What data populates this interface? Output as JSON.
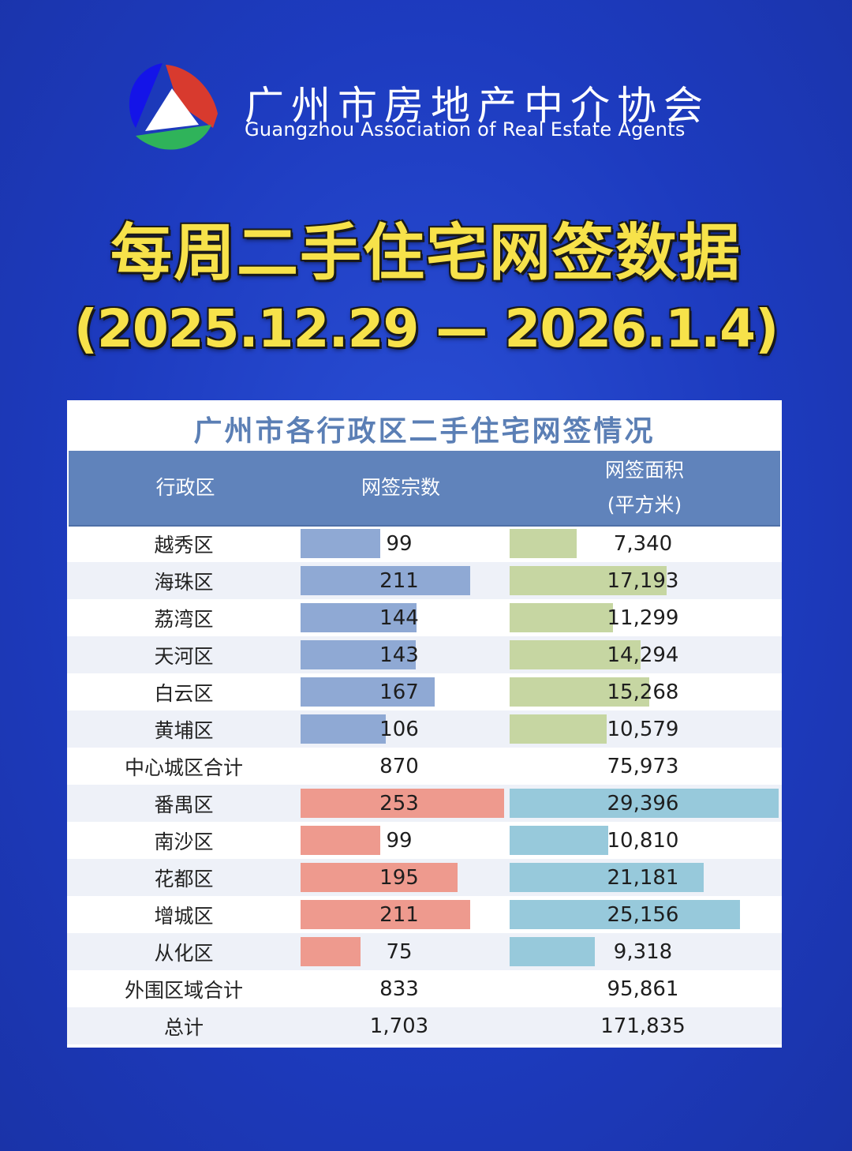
{
  "header": {
    "org_name_cn": "广州市房地产中介协会",
    "org_name_en": "Guangzhou Association of Real Estate Agents",
    "logo_icon": "tri-color-triangle-logo"
  },
  "title": "每周二手住宅网签数据",
  "date_range": "(2025.12.29 — 2026.1.4)",
  "colors": {
    "background": "#1f3fc4",
    "title": "#f7e24a",
    "header_row": "#6083bb",
    "central_count_bar": "#8fa9d4",
    "central_area_bar": "#c6d6a2",
    "outer_count_bar": "#ee9a8e",
    "outer_area_bar": "#97c9db"
  },
  "table": {
    "caption": "广州市各行政区二手住宅网签情况",
    "headers": {
      "district": "行政区",
      "count": "网签宗数",
      "area_line1": "网签面积",
      "area_line2": "(平方米)"
    },
    "rows": [
      {
        "district": "越秀区",
        "count": "99",
        "area": "7,340"
      },
      {
        "district": "海珠区",
        "count": "211",
        "area": "17,193"
      },
      {
        "district": "荔湾区",
        "count": "144",
        "area": "11,299"
      },
      {
        "district": "天河区",
        "count": "143",
        "area": "14,294"
      },
      {
        "district": "白云区",
        "count": "167",
        "area": "15,268"
      },
      {
        "district": "黄埔区",
        "count": "106",
        "area": "10,579"
      },
      {
        "district": "中心城区合计",
        "count": "870",
        "area": "75,973"
      },
      {
        "district": "番禺区",
        "count": "253",
        "area": "29,396"
      },
      {
        "district": "南沙区",
        "count": "99",
        "area": "10,810"
      },
      {
        "district": "花都区",
        "count": "195",
        "area": "21,181"
      },
      {
        "district": "增城区",
        "count": "211",
        "area": "25,156"
      },
      {
        "district": "从化区",
        "count": "75",
        "area": "9,318"
      },
      {
        "district": "外围区域合计",
        "count": "833",
        "area": "95,861"
      },
      {
        "district": "总计",
        "count": "1,703",
        "area": "171,835"
      }
    ]
  }
}
